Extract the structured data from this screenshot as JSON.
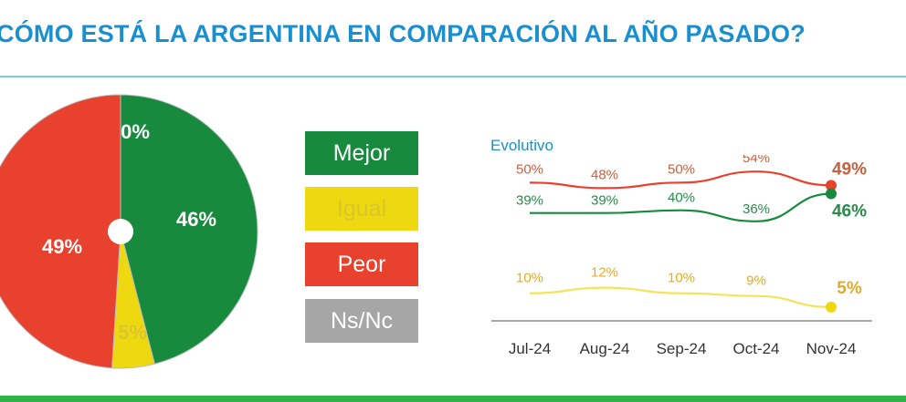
{
  "header": {
    "title": "CÓMO ESTÁ LA ARGENTINA EN COMPARACIÓN AL AÑO PASADO?"
  },
  "legend": {
    "mejor": "Mejor",
    "igual": "Igual",
    "peor": "Peor",
    "nsnc": "Ns/Nc"
  },
  "colors": {
    "mejor": "#178a3e",
    "igual": "#eed80f",
    "peor": "#e8412e",
    "nsnc": "#a6a6a6",
    "accent": "#1a8fd0"
  },
  "chart_data": [
    {
      "type": "pie",
      "title": "",
      "categories": [
        "Mejor",
        "Igual",
        "Peor",
        "Ns/Nc"
      ],
      "values": [
        46,
        5,
        49,
        0
      ],
      "labels": [
        "46%",
        "5%",
        "49%",
        "0%"
      ]
    },
    {
      "type": "line",
      "title": "Evolutivo",
      "categories": [
        "Jul-24",
        "Aug-24",
        "Sep-24",
        "Oct-24",
        "Nov-24"
      ],
      "ylim": [
        0,
        60
      ],
      "series": [
        {
          "name": "Peor",
          "color": "#e8412e",
          "label_color": "#c7603f",
          "values": [
            50,
            48,
            50,
            54,
            49
          ],
          "labels": [
            "50%",
            "48%",
            "50%",
            "54%",
            "49%"
          ]
        },
        {
          "name": "Mejor",
          "color": "#178a3e",
          "label_color": "#2a8a4a",
          "values": [
            39,
            39,
            40,
            36,
            46
          ],
          "labels": [
            "39%",
            "39%",
            "40%",
            "36%",
            "46%"
          ]
        },
        {
          "name": "Igual",
          "color": "#eed80f",
          "label_color": "#e0ab2a",
          "values": [
            10,
            12,
            10,
            9,
            5
          ],
          "labels": [
            "10%",
            "12%",
            "10%",
            "9%",
            "5%"
          ]
        }
      ]
    }
  ]
}
